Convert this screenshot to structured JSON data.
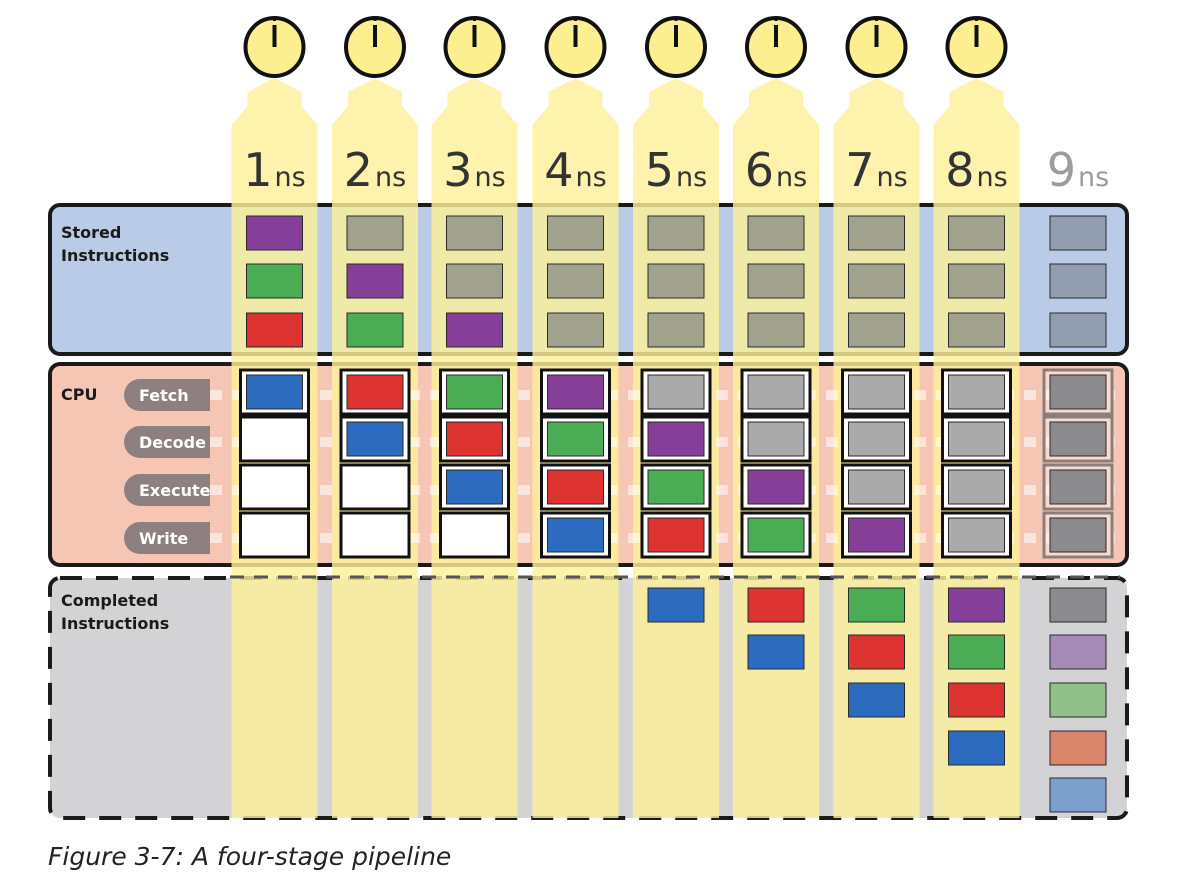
{
  "caption": "Figure 3-7: A four-stage pipeline",
  "columns": [
    {
      "num": "1",
      "unit": "ns",
      "dim": false
    },
    {
      "num": "2",
      "unit": "ns",
      "dim": false
    },
    {
      "num": "3",
      "unit": "ns",
      "dim": false
    },
    {
      "num": "4",
      "unit": "ns",
      "dim": false
    },
    {
      "num": "5",
      "unit": "ns",
      "dim": false
    },
    {
      "num": "6",
      "unit": "ns",
      "dim": false
    },
    {
      "num": "7",
      "unit": "ns",
      "dim": false
    },
    {
      "num": "8",
      "unit": "ns",
      "dim": false
    },
    {
      "num": "9",
      "unit": "ns",
      "dim": true
    }
  ],
  "panels": {
    "stored": {
      "label_line1": "Stored",
      "label_line2": "Instructions"
    },
    "cpu": {
      "label": "CPU",
      "stages": [
        "Fetch",
        "Decode",
        "Execute",
        "Write"
      ]
    },
    "completed": {
      "label_line1": "Completed",
      "label_line2": "Instructions"
    }
  },
  "colors": {
    "purple": "#863f98",
    "green": "#4aad55",
    "red": "#dc3330",
    "blue": "#2c6bbd",
    "olive": "#a0a28e",
    "slate": "#8c95a6",
    "gray": "#aaaaab",
    "empty": "#ffffff",
    "dgray": "#8c8c8e",
    "lpurple": "#a68bb9",
    "lgreen": "#92c08a",
    "lred": "#d9866b",
    "lblue": "#7ba0cc",
    "highlight": "#fcf09a",
    "stored_bg": "#b9cbe6",
    "cpu_bg": "#f6c6b5",
    "completed_bg": "#d3d3d5",
    "clock_face": "#fbef8f"
  },
  "stored_stack": [
    [
      "purple",
      "green",
      "red"
    ],
    [
      "olive",
      "purple",
      "green"
    ],
    [
      "olive",
      "olive",
      "purple"
    ],
    [
      "olive",
      "olive",
      "olive"
    ],
    [
      "olive",
      "olive",
      "olive"
    ],
    [
      "olive",
      "olive",
      "olive"
    ],
    [
      "olive",
      "olive",
      "olive"
    ],
    [
      "olive",
      "olive",
      "olive"
    ],
    [
      "slate",
      "slate",
      "slate"
    ]
  ],
  "pipeline_state": [
    [
      "blue",
      "empty",
      "empty",
      "empty"
    ],
    [
      "red",
      "blue",
      "empty",
      "empty"
    ],
    [
      "green",
      "red",
      "blue",
      "empty"
    ],
    [
      "purple",
      "green",
      "red",
      "blue"
    ],
    [
      "gray",
      "purple",
      "green",
      "red"
    ],
    [
      "gray",
      "gray",
      "purple",
      "green"
    ],
    [
      "gray",
      "gray",
      "gray",
      "purple"
    ],
    [
      "gray",
      "gray",
      "gray",
      "gray"
    ],
    [
      "dgray",
      "dgray",
      "dgray",
      "dgray"
    ]
  ],
  "completed_stack": [
    [],
    [],
    [],
    [],
    [
      "blue"
    ],
    [
      "red",
      "blue"
    ],
    [
      "green",
      "red",
      "blue"
    ],
    [
      "purple",
      "green",
      "red",
      "blue"
    ],
    [
      "dgray",
      "lpurple",
      "lgreen",
      "lred",
      "lblue"
    ]
  ]
}
